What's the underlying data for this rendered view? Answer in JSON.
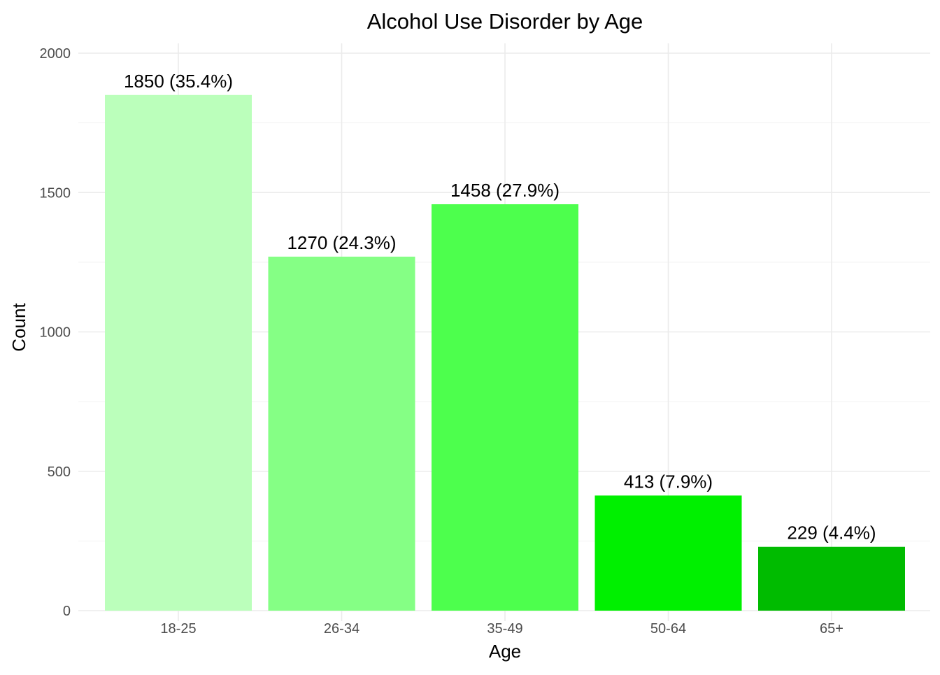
{
  "chart_data": {
    "type": "bar",
    "title": "Alcohol Use Disorder by Age",
    "xlabel": "Age",
    "ylabel": "Count",
    "categories": [
      "18-25",
      "26-34",
      "35-49",
      "50-64",
      "65+"
    ],
    "values": [
      1850,
      1270,
      1458,
      413,
      229
    ],
    "bar_labels": [
      "1850 (35.4%)",
      "1270 (24.3%)",
      "1458 (27.9%)",
      "413 (7.9%)",
      "229 (4.4%)"
    ],
    "colors": [
      "#bbffbb",
      "#85ff85",
      "#4dff4d",
      "#00f000",
      "#00bb00"
    ],
    "ylim": [
      0,
      2000
    ],
    "y_ticks": [
      0,
      500,
      1000,
      1500,
      2000
    ],
    "y_tick_labels": [
      "0",
      "500",
      "1000",
      "1500",
      "2000"
    ],
    "grid": true,
    "legend": "none"
  }
}
